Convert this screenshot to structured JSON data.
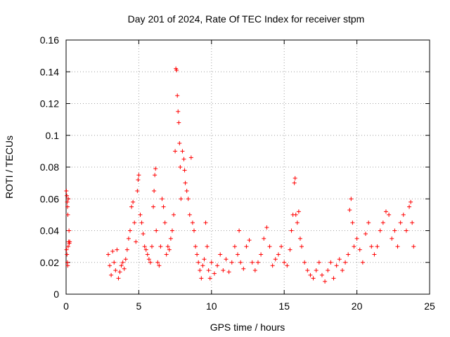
{
  "chart_data": {
    "type": "scatter",
    "title": "Day 201 of 2024, Rate Of TEC Index for receiver stpm",
    "xlabel": "GPS time / hours",
    "ylabel": "ROTI / TECUs",
    "xlim": [
      0,
      25
    ],
    "ylim": [
      0,
      0.16
    ],
    "xticks": [
      0,
      5,
      10,
      15,
      20,
      25
    ],
    "yticks": [
      0,
      0.02,
      0.04,
      0.06,
      0.08,
      0.1,
      0.12,
      0.14,
      0.16
    ],
    "xtick_labels": [
      "0",
      "5",
      "10",
      "15",
      "20",
      "25"
    ],
    "ytick_labels": [
      "0",
      "0.02",
      "0.04",
      "0.06",
      "0.08",
      "0.1",
      "0.12",
      "0.14",
      "0.16"
    ],
    "grid": true,
    "marker": "+",
    "marker_color": "#ff0000",
    "series": [
      {
        "name": "ROTI",
        "points": [
          [
            0.02,
            0.065
          ],
          [
            0.05,
            0.062
          ],
          [
            0.08,
            0.058
          ],
          [
            0.1,
            0.055
          ],
          [
            0.12,
            0.05
          ],
          [
            0.15,
            0.06
          ],
          [
            0.03,
            0.028
          ],
          [
            0.06,
            0.025
          ],
          [
            0.09,
            0.02
          ],
          [
            0.11,
            0.018
          ],
          [
            0.14,
            0.03
          ],
          [
            0.18,
            0.033
          ],
          [
            0.2,
            0.04
          ],
          [
            0.22,
            0.032
          ],
          [
            0.25,
            0.033
          ],
          [
            2.9,
            0.025
          ],
          [
            3.0,
            0.018
          ],
          [
            3.1,
            0.012
          ],
          [
            3.2,
            0.027
          ],
          [
            3.3,
            0.02
          ],
          [
            3.4,
            0.015
          ],
          [
            3.5,
            0.028
          ],
          [
            3.6,
            0.01
          ],
          [
            3.7,
            0.014
          ],
          [
            3.8,
            0.018
          ],
          [
            3.9,
            0.02
          ],
          [
            4.0,
            0.016
          ],
          [
            4.1,
            0.022
          ],
          [
            4.2,
            0.028
          ],
          [
            4.3,
            0.035
          ],
          [
            4.4,
            0.04
          ],
          [
            4.5,
            0.055
          ],
          [
            4.6,
            0.058
          ],
          [
            4.7,
            0.045
          ],
          [
            4.8,
            0.033
          ],
          [
            4.9,
            0.065
          ],
          [
            4.95,
            0.072
          ],
          [
            5.0,
            0.075
          ],
          [
            5.1,
            0.05
          ],
          [
            5.2,
            0.045
          ],
          [
            5.3,
            0.038
          ],
          [
            5.4,
            0.03
          ],
          [
            5.5,
            0.028
          ],
          [
            5.6,
            0.025
          ],
          [
            5.7,
            0.022
          ],
          [
            5.8,
            0.02
          ],
          [
            5.9,
            0.03
          ],
          [
            6.0,
            0.055
          ],
          [
            6.05,
            0.065
          ],
          [
            6.1,
            0.075
          ],
          [
            6.15,
            0.079
          ],
          [
            6.2,
            0.04
          ],
          [
            6.3,
            0.02
          ],
          [
            6.4,
            0.018
          ],
          [
            6.5,
            0.03
          ],
          [
            6.6,
            0.06
          ],
          [
            6.7,
            0.055
          ],
          [
            6.8,
            0.045
          ],
          [
            6.9,
            0.025
          ],
          [
            7.0,
            0.03
          ],
          [
            7.1,
            0.028
          ],
          [
            7.2,
            0.035
          ],
          [
            7.3,
            0.04
          ],
          [
            7.4,
            0.05
          ],
          [
            7.5,
            0.09
          ],
          [
            7.55,
            0.142
          ],
          [
            7.6,
            0.141
          ],
          [
            7.65,
            0.125
          ],
          [
            7.7,
            0.115
          ],
          [
            7.75,
            0.108
          ],
          [
            7.8,
            0.095
          ],
          [
            7.85,
            0.08
          ],
          [
            7.9,
            0.06
          ],
          [
            8.0,
            0.09
          ],
          [
            8.1,
            0.085
          ],
          [
            8.15,
            0.078
          ],
          [
            8.2,
            0.07
          ],
          [
            8.3,
            0.065
          ],
          [
            8.4,
            0.06
          ],
          [
            8.5,
            0.05
          ],
          [
            8.6,
            0.086
          ],
          [
            8.7,
            0.045
          ],
          [
            8.8,
            0.04
          ],
          [
            8.9,
            0.03
          ],
          [
            9.0,
            0.025
          ],
          [
            9.1,
            0.02
          ],
          [
            9.2,
            0.015
          ],
          [
            9.3,
            0.01
          ],
          [
            9.4,
            0.018
          ],
          [
            9.5,
            0.022
          ],
          [
            9.6,
            0.045
          ],
          [
            9.7,
            0.03
          ],
          [
            9.8,
            0.015
          ],
          [
            9.9,
            0.01
          ],
          [
            10.0,
            0.02
          ],
          [
            10.2,
            0.013
          ],
          [
            10.4,
            0.018
          ],
          [
            10.6,
            0.025
          ],
          [
            10.8,
            0.015
          ],
          [
            11.0,
            0.022
          ],
          [
            11.2,
            0.014
          ],
          [
            11.4,
            0.02
          ],
          [
            11.6,
            0.03
          ],
          [
            11.8,
            0.025
          ],
          [
            11.9,
            0.04
          ],
          [
            12.0,
            0.02
          ],
          [
            12.2,
            0.016
          ],
          [
            12.4,
            0.03
          ],
          [
            12.6,
            0.034
          ],
          [
            12.8,
            0.02
          ],
          [
            13.0,
            0.015
          ],
          [
            13.2,
            0.02
          ],
          [
            13.4,
            0.025
          ],
          [
            13.6,
            0.035
          ],
          [
            13.8,
            0.042
          ],
          [
            14.0,
            0.03
          ],
          [
            14.2,
            0.018
          ],
          [
            14.4,
            0.022
          ],
          [
            14.6,
            0.025
          ],
          [
            14.8,
            0.03
          ],
          [
            15.0,
            0.02
          ],
          [
            15.2,
            0.018
          ],
          [
            15.4,
            0.028
          ],
          [
            15.5,
            0.04
          ],
          [
            15.6,
            0.05
          ],
          [
            15.7,
            0.07
          ],
          [
            15.75,
            0.073
          ],
          [
            15.8,
            0.05
          ],
          [
            15.9,
            0.045
          ],
          [
            16.0,
            0.052
          ],
          [
            16.1,
            0.035
          ],
          [
            16.2,
            0.03
          ],
          [
            16.4,
            0.02
          ],
          [
            16.6,
            0.015
          ],
          [
            16.8,
            0.012
          ],
          [
            17.0,
            0.01
          ],
          [
            17.2,
            0.015
          ],
          [
            17.4,
            0.02
          ],
          [
            17.6,
            0.012
          ],
          [
            17.8,
            0.008
          ],
          [
            18.0,
            0.015
          ],
          [
            18.2,
            0.02
          ],
          [
            18.4,
            0.01
          ],
          [
            18.6,
            0.018
          ],
          [
            18.8,
            0.022
          ],
          [
            19.0,
            0.015
          ],
          [
            19.2,
            0.02
          ],
          [
            19.4,
            0.025
          ],
          [
            19.5,
            0.053
          ],
          [
            19.6,
            0.06
          ],
          [
            19.7,
            0.045
          ],
          [
            19.8,
            0.03
          ],
          [
            20.0,
            0.035
          ],
          [
            20.2,
            0.028
          ],
          [
            20.4,
            0.02
          ],
          [
            20.6,
            0.038
          ],
          [
            20.8,
            0.045
          ],
          [
            21.0,
            0.03
          ],
          [
            21.2,
            0.025
          ],
          [
            21.4,
            0.03
          ],
          [
            21.6,
            0.04
          ],
          [
            21.8,
            0.045
          ],
          [
            22.0,
            0.052
          ],
          [
            22.2,
            0.05
          ],
          [
            22.4,
            0.035
          ],
          [
            22.6,
            0.04
          ],
          [
            22.8,
            0.03
          ],
          [
            23.0,
            0.045
          ],
          [
            23.2,
            0.05
          ],
          [
            23.4,
            0.04
          ],
          [
            23.6,
            0.055
          ],
          [
            23.7,
            0.058
          ],
          [
            23.8,
            0.045
          ],
          [
            23.9,
            0.03
          ]
        ]
      }
    ]
  }
}
